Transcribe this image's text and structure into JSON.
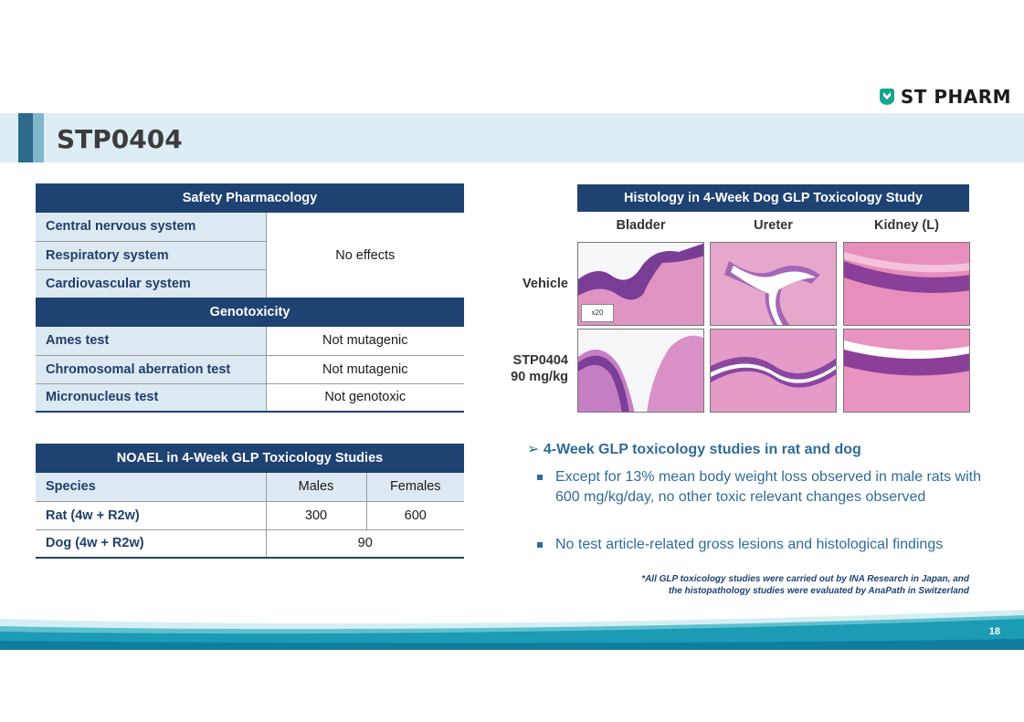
{
  "brand": {
    "name": "ST PHARM",
    "logo_icon": "st-pharm-logo-icon"
  },
  "title": "STP0404",
  "safety_table": {
    "header_pharmacology": "Safety Pharmacology",
    "pharmacology_rows": [
      "Central nervous system",
      "Respiratory system",
      "Cardiovascular system"
    ],
    "pharmacology_result": "No effects",
    "header_genotoxicity": "Genotoxicity",
    "genotoxicity_rows": [
      {
        "label": "Ames test",
        "value": "Not mutagenic"
      },
      {
        "label": "Chromosomal aberration test",
        "value": "Not mutagenic"
      },
      {
        "label": "Micronucleus test",
        "value": "Not genotoxic"
      }
    ]
  },
  "noael_table": {
    "header": "NOAEL in 4-Week GLP Toxicology Studies",
    "columns": [
      "Species",
      "Males",
      "Females"
    ],
    "rows": [
      {
        "species": "Rat (4w + R2w)",
        "males": "300",
        "females": "600"
      },
      {
        "species": "Dog (4w + R2w)",
        "combined": "90"
      }
    ]
  },
  "histology": {
    "title": "Histology in 4-Week Dog GLP Toxicology Study",
    "columns": [
      "Bladder",
      "Ureter",
      "Kidney (L)"
    ],
    "row_vehicle": "Vehicle",
    "row_treated_line1": "STP0404",
    "row_treated_line2": "90 mg/kg",
    "magnification": "x20"
  },
  "findings": {
    "heading": "4-Week GLP toxicology studies in rat and dog",
    "items": [
      "Except for 13% mean body weight loss observed in male rats with 600 mg/kg/day, no other toxic relevant changes observed",
      "No test article-related gross lesions and histological findings"
    ]
  },
  "footnote": {
    "line1": "*All GLP toxicology studies were carried out by INA Research in Japan, and",
    "line2": "the histopathology studies were evaluated by AnaPath in Switzerland"
  },
  "page_number": "18",
  "colors": {
    "navy": "#1e4372",
    "label_bg": "#dde9f2",
    "accent_blue": "#2f6b9a",
    "band": "#dceef4"
  }
}
